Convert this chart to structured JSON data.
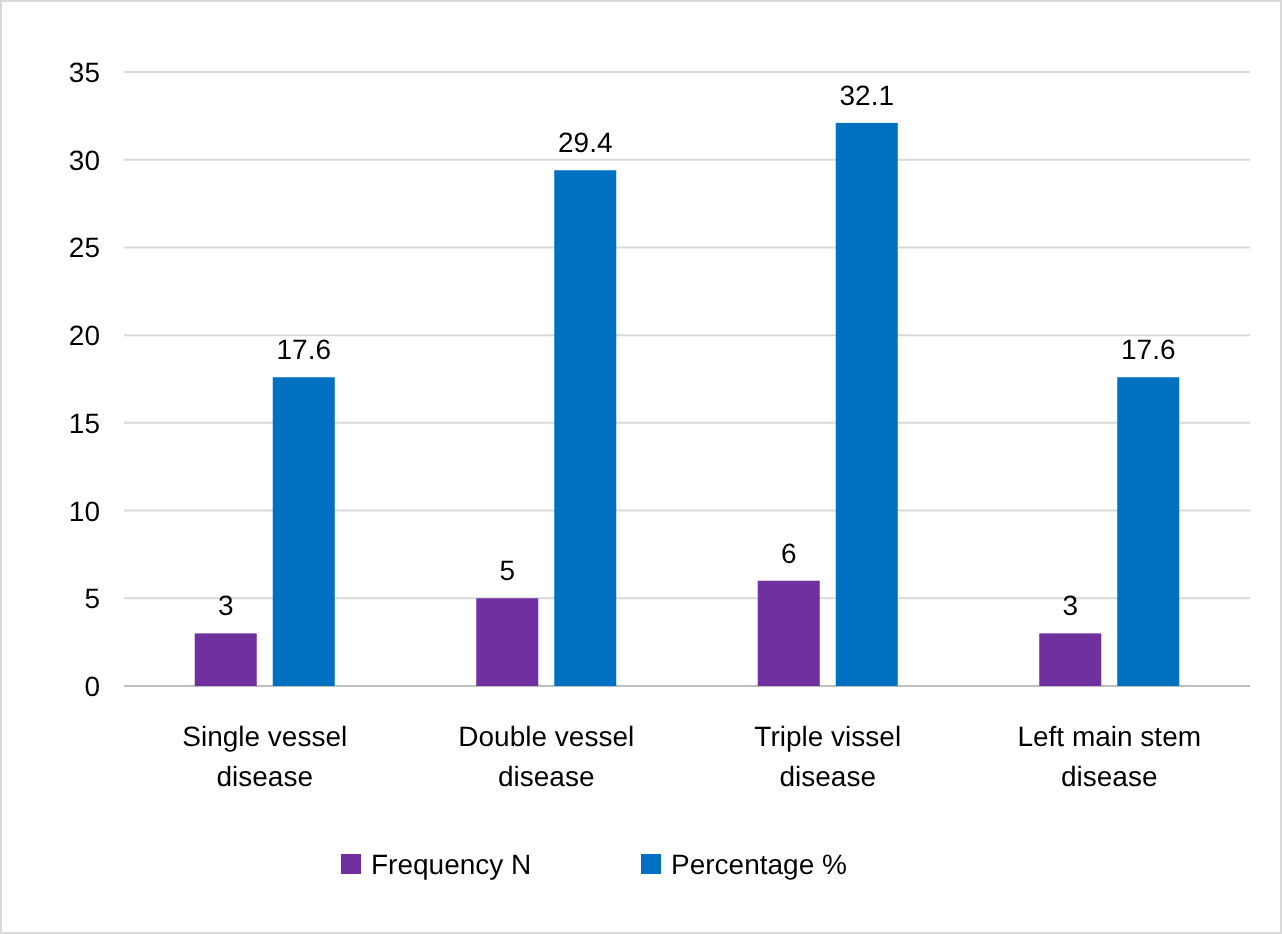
{
  "chart_data": {
    "type": "bar",
    "categories": [
      "Single vessel disease",
      "Double vessel disease",
      "Triple vissel disease",
      "Left main stem disease"
    ],
    "series": [
      {
        "name": "Frequency N",
        "color": "#7030a0",
        "values": [
          3,
          5,
          6,
          3
        ]
      },
      {
        "name": "Percentage %",
        "color": "#0070c0",
        "values": [
          17.6,
          29.4,
          32.1,
          17.6
        ]
      }
    ],
    "ylim": [
      0,
      35
    ],
    "yticks": [
      0,
      5,
      10,
      15,
      20,
      25,
      30,
      35
    ],
    "grid": "y",
    "legend": "bottom",
    "data_labels": true
  }
}
